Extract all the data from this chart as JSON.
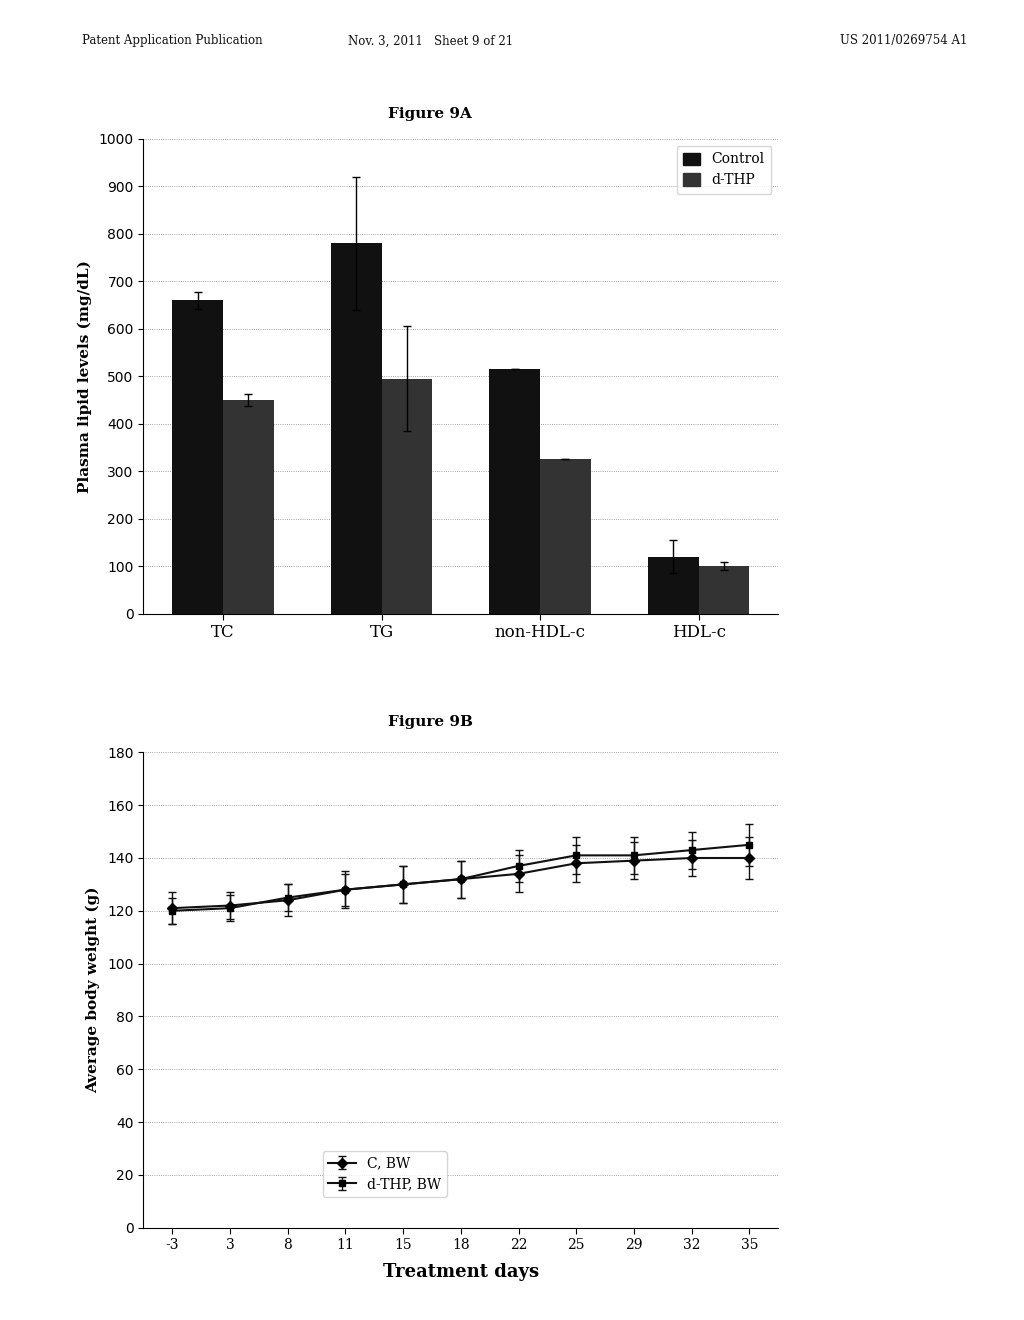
{
  "fig9a": {
    "title": "Figure 9A",
    "categories": [
      "TC",
      "TG",
      "non-HDL-c",
      "HDL-c"
    ],
    "control_values": [
      660,
      780,
      515,
      120
    ],
    "dthp_values": [
      450,
      495,
      325,
      100
    ],
    "control_errors": [
      18,
      140,
      0,
      35
    ],
    "dthp_errors": [
      12,
      110,
      0,
      8
    ],
    "ylabel": "Plasma lipid levels (mg/dL)",
    "ylim": [
      0,
      1000
    ],
    "yticks": [
      0,
      100,
      200,
      300,
      400,
      500,
      600,
      700,
      800,
      900,
      1000
    ],
    "legend_labels": [
      "Control",
      "d-THP"
    ],
    "bar_color_control": "#111111",
    "bar_color_dthp": "#333333",
    "bar_width": 0.32
  },
  "fig9b": {
    "title": "Figure 9B",
    "xlabel": "Treatment days",
    "ylabel": "Average body weight (g)",
    "x_days": [
      -3,
      3,
      8,
      11,
      15,
      18,
      22,
      25,
      29,
      32,
      35
    ],
    "c_bw_values": [
      121,
      122,
      124,
      128,
      130,
      132,
      134,
      138,
      139,
      140,
      140
    ],
    "dthp_bw_values": [
      120,
      121,
      125,
      128,
      130,
      132,
      137,
      141,
      141,
      143,
      145
    ],
    "c_bw_errors": [
      6,
      5,
      6,
      7,
      7,
      7,
      7,
      7,
      7,
      7,
      8
    ],
    "dthp_bw_errors": [
      5,
      5,
      5,
      6,
      7,
      7,
      6,
      7,
      7,
      7,
      8
    ],
    "ylim": [
      0,
      180
    ],
    "yticks": [
      0,
      20,
      40,
      60,
      80,
      100,
      120,
      140,
      160,
      180
    ],
    "legend_labels": [
      "C, BW",
      "d-THP, BW"
    ],
    "line_color": "#111111"
  },
  "header_left": "Patent Application Publication",
  "header_mid": "Nov. 3, 2011   Sheet 9 of 21",
  "header_right": "US 2011/0269754 A1",
  "background_color": "#ffffff"
}
